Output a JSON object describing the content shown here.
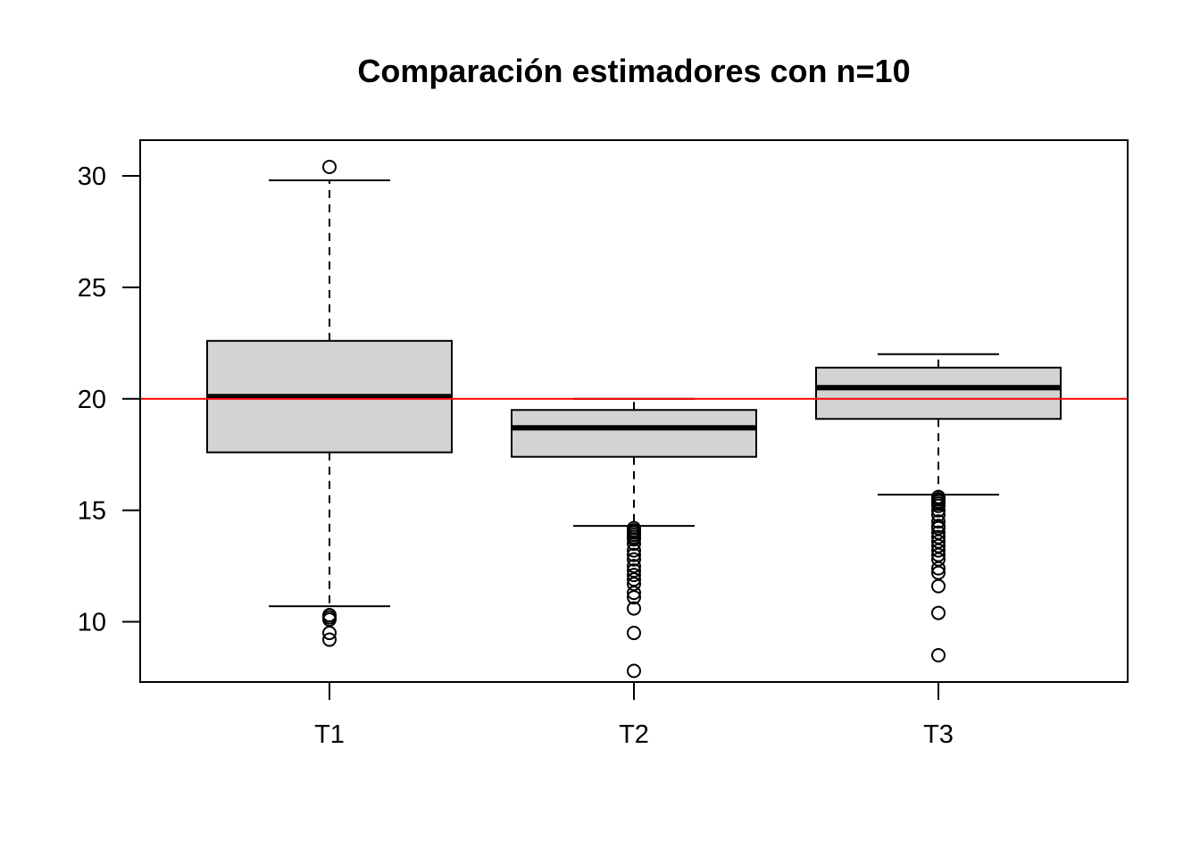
{
  "chart_data": {
    "type": "boxplot",
    "title": "Comparación estimadores con n=10",
    "xlabel": "",
    "ylabel": "",
    "categories": [
      "T1",
      "T2",
      "T3"
    ],
    "ylim": [
      7.3,
      31.6
    ],
    "yticks": [
      10,
      15,
      20,
      25,
      30
    ],
    "grid": false,
    "legend": "none",
    "reference_line": {
      "y": 20,
      "color": "#ff0000"
    },
    "box_fill": "#d3d3d3",
    "boxes": [
      {
        "name": "T1",
        "whisker_low": 10.7,
        "q1": 17.6,
        "median": 20.1,
        "q3": 22.6,
        "whisker_high": 29.8,
        "outliers": [
          30.4,
          10.3,
          10.2,
          10.1,
          9.5,
          9.2
        ]
      },
      {
        "name": "T2",
        "whisker_low": 14.3,
        "q1": 17.4,
        "median": 18.7,
        "q3": 19.5,
        "whisker_high": 20.0,
        "outliers": [
          14.2,
          14.1,
          14.0,
          13.9,
          13.8,
          13.7,
          13.5,
          13.2,
          13.0,
          12.8,
          12.5,
          12.3,
          12.1,
          11.9,
          11.7,
          11.3,
          11.1,
          10.6,
          9.5,
          7.8
        ]
      },
      {
        "name": "T3",
        "whisker_low": 15.7,
        "q1": 19.1,
        "median": 20.5,
        "q3": 21.4,
        "whisker_high": 22.0,
        "outliers": [
          15.6,
          15.5,
          15.4,
          15.3,
          15.2,
          15.0,
          14.8,
          14.5,
          14.3,
          14.2,
          14.0,
          13.8,
          13.6,
          13.4,
          13.2,
          13.0,
          12.8,
          12.4,
          12.2,
          11.6,
          10.4,
          8.5
        ]
      }
    ]
  }
}
